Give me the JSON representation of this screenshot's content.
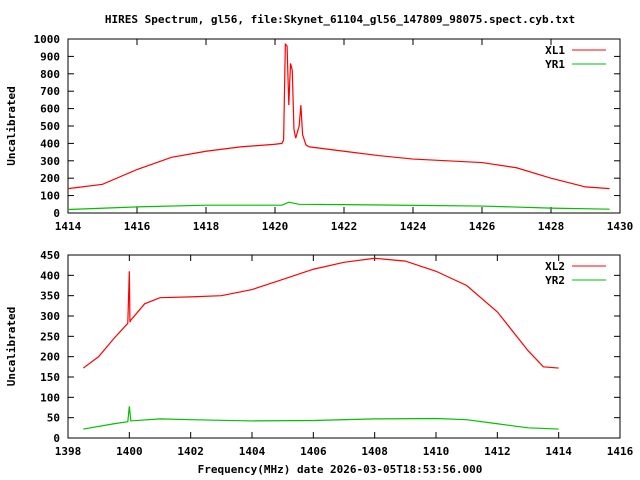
{
  "chart_data": [
    {
      "type": "line",
      "title": "HIRES Spectrum, gl56, file:Skynet_61104_gl56_147809_98075.spect.cyb.txt",
      "xlabel": "",
      "ylabel": "Uncalibrated",
      "xlim": [
        1414,
        1430
      ],
      "ylim": [
        0,
        1000
      ],
      "xticks": [
        "1414",
        "1416",
        "1418",
        "1420",
        "1422",
        "1424",
        "1426",
        "1428",
        "1430"
      ],
      "yticks": [
        "0",
        "100",
        "200",
        "300",
        "400",
        "500",
        "600",
        "700",
        "800",
        "900",
        "1000"
      ],
      "legend_position": "top-right",
      "series": [
        {
          "name": "XL1",
          "color": "#ff0000",
          "x": [
            1414,
            1415,
            1416,
            1417,
            1418,
            1419,
            1420,
            1420.2,
            1420.25,
            1420.3,
            1420.35,
            1420.4,
            1420.45,
            1420.5,
            1420.55,
            1420.6,
            1420.7,
            1420.75,
            1420.8,
            1420.9,
            1421,
            1422,
            1423,
            1424,
            1425,
            1426,
            1427,
            1428,
            1429,
            1429.7
          ],
          "y": [
            140,
            165,
            250,
            320,
            355,
            380,
            395,
            400,
            420,
            970,
            960,
            620,
            860,
            820,
            480,
            430,
            500,
            620,
            450,
            390,
            380,
            355,
            330,
            310,
            300,
            290,
            260,
            200,
            150,
            140
          ]
        },
        {
          "name": "YR1",
          "color": "#00c000",
          "x": [
            1414,
            1416,
            1418,
            1420.2,
            1420.4,
            1420.7,
            1422,
            1426,
            1428,
            1429.7
          ],
          "y": [
            20,
            35,
            45,
            45,
            62,
            50,
            48,
            40,
            28,
            22
          ]
        }
      ]
    },
    {
      "type": "line",
      "title": "",
      "xlabel": "Frequency(MHz) date 2026-03-05T18:53:56.000",
      "ylabel": "Uncalibrated",
      "xlim": [
        1398,
        1416
      ],
      "ylim": [
        0,
        450
      ],
      "xticks": [
        "1398",
        "1400",
        "1402",
        "1404",
        "1406",
        "1408",
        "1410",
        "1412",
        "1414",
        "1416"
      ],
      "yticks": [
        "0",
        "50",
        "100",
        "150",
        "200",
        "250",
        "300",
        "350",
        "400",
        "450"
      ],
      "legend_position": "top-right",
      "series": [
        {
          "name": "XL2",
          "color": "#ff0000",
          "x": [
            1398.5,
            1399,
            1399.5,
            1399.95,
            1400,
            1400.02,
            1400.05,
            1400.5,
            1401,
            1402,
            1403,
            1404,
            1405,
            1406,
            1407,
            1408,
            1409,
            1410,
            1411,
            1412,
            1413,
            1413.5,
            1414
          ],
          "y": [
            172,
            200,
            245,
            282,
            410,
            285,
            290,
            330,
            345,
            347,
            350,
            365,
            390,
            415,
            432,
            442,
            435,
            410,
            375,
            310,
            215,
            175,
            172
          ]
        },
        {
          "name": "YR2",
          "color": "#00c000",
          "x": [
            1398.5,
            1399.5,
            1399.95,
            1400,
            1400.05,
            1401,
            1402,
            1404,
            1406,
            1408,
            1410,
            1411,
            1412,
            1413,
            1414
          ],
          "y": [
            22,
            35,
            40,
            78,
            42,
            47,
            45,
            42,
            43,
            47,
            48,
            45,
            35,
            25,
            22
          ]
        }
      ]
    }
  ]
}
